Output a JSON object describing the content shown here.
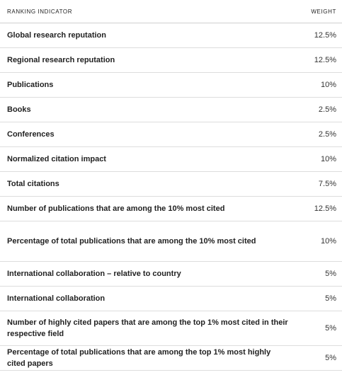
{
  "table": {
    "header": {
      "indicator": "RANKING INDICATOR",
      "weight": "WEIGHT"
    },
    "rows": [
      {
        "label": "Global research reputation",
        "weight": "12.5%"
      },
      {
        "label": "Regional research reputation",
        "weight": "12.5%"
      },
      {
        "label": "Publications",
        "weight": "10%"
      },
      {
        "label": "Books",
        "weight": "2.5%"
      },
      {
        "label": "Conferences",
        "weight": "2.5%"
      },
      {
        "label": "Normalized citation impact",
        "weight": "10%"
      },
      {
        "label": "Total citations",
        "weight": "7.5%"
      },
      {
        "label": "Number of publications that are among the 10% most cited",
        "weight": "12.5%"
      },
      {
        "label": "Percentage of total publications that are among the 10% most cited",
        "weight": "10%"
      },
      {
        "label": "International collaboration – relative to country",
        "weight": "5%"
      },
      {
        "label": "International collaboration",
        "weight": "5%"
      },
      {
        "label": "Number of highly cited papers that are among the top 1% most cited in their respective field",
        "weight": "5%"
      },
      {
        "label": "Percentage of total publications that are among the top 1% most highly cited papers",
        "weight": "5%"
      }
    ]
  }
}
